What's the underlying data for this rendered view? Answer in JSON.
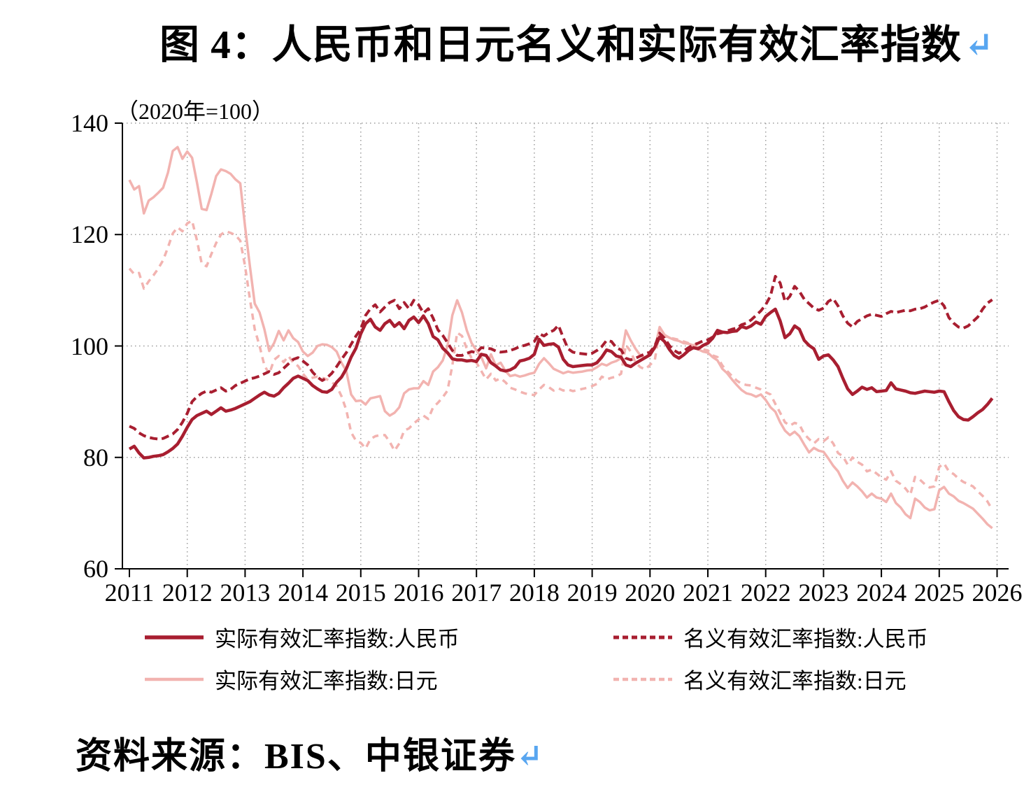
{
  "title": {
    "text": "图 4：人民币和日元名义和实际有效汇率指数",
    "return_mark": "↵"
  },
  "source": {
    "text": "资料来源：BIS、中银证券",
    "return_mark": "↵"
  },
  "colors": {
    "cny": "#a81e30",
    "jpy": "#f2b3b0",
    "gridline": "#9c9c9c",
    "axis": "#000000",
    "return_arrow": "#58a6f0"
  },
  "chart_data": {
    "type": "line",
    "title": "图 4：人民币和日元名义和实际有效汇率指数",
    "axis_note": "（2020年=100）",
    "ylim": [
      60,
      140
    ],
    "y_ticks": [
      140,
      120,
      100,
      80,
      60
    ],
    "x_ticks": [
      2011,
      2012,
      2013,
      2014,
      2015,
      2016,
      2017,
      2018,
      2019,
      2020,
      2021,
      2022,
      2023,
      2024,
      2025,
      2026
    ],
    "x_start_year": 2011,
    "frequency": "monthly",
    "grid": "dotted, horizontal at 80/100/120/140 and vertical at each year",
    "legend_position": "below chart, two columns",
    "series": [
      {
        "name": "实际有效汇率指数:日元",
        "currency": "JPY",
        "measure": "real",
        "style": "solid",
        "width": 3.5,
        "color_key": "jpy",
        "values": [
          129.8,
          128.1,
          128.7,
          123.8,
          126.1,
          126.7,
          127.5,
          128.4,
          131.1,
          135.0,
          135.7,
          133.6,
          134.9,
          133.8,
          129.4,
          124.6,
          124.4,
          127.3,
          130.5,
          131.7,
          131.4,
          130.9,
          129.9,
          129.2,
          121.4,
          114.3,
          107.6,
          106.0,
          103.0,
          99.1,
          100.5,
          102.7,
          101.0,
          102.8,
          101.4,
          100.7,
          99.0,
          98.2,
          98.8,
          100.0,
          100.3,
          100.2,
          99.8,
          99.0,
          97.0,
          95.5,
          91.3,
          90.1,
          90.2,
          89.5,
          90.6,
          90.8,
          91.0,
          88.3,
          87.5,
          88.0,
          89.0,
          91.5,
          92.2,
          92.4,
          92.4,
          93.7,
          93.0,
          95.4,
          96.2,
          97.4,
          100.0,
          105.5,
          108.2,
          106.0,
          102.8,
          100.5,
          99.2,
          98.0,
          96.0,
          98.5,
          96.5,
          97.0,
          95.5,
          94.6,
          94.8,
          94.5,
          94.7,
          95.0,
          95.2,
          96.8,
          97.8,
          96.9,
          95.9,
          95.5,
          95.1,
          95.4,
          95.2,
          95.3,
          95.4,
          95.6,
          95.7,
          96.2,
          96.8,
          96.5,
          97.0,
          97.3,
          97.8,
          102.8,
          101.0,
          99.5,
          98.3,
          97.9,
          98.7,
          99.5,
          103.4,
          102.0,
          101.5,
          101.1,
          100.9,
          100.5,
          100.4,
          100.1,
          99.4,
          99.0,
          98.8,
          98.0,
          97.4,
          95.9,
          95.1,
          94.0,
          93.0,
          92.1,
          91.5,
          91.3,
          90.9,
          91.3,
          90.3,
          89.0,
          88.2,
          86.3,
          84.8,
          84.0,
          84.6,
          83.8,
          82.3,
          80.9,
          81.7,
          81.2,
          81.0,
          79.8,
          78.5,
          77.5,
          75.8,
          74.5,
          75.5,
          74.8,
          73.9,
          72.8,
          73.5,
          72.8,
          72.6,
          72.0,
          73.5,
          71.8,
          71.0,
          69.8,
          69.1,
          72.6,
          72.0,
          71.0,
          70.5,
          70.7,
          74.1,
          74.7,
          73.5,
          73.0,
          72.2,
          71.8,
          71.3,
          70.8,
          69.9,
          69.0,
          68.0,
          67.3
        ]
      },
      {
        "name": "名义有效汇率指数:日元",
        "currency": "JPY",
        "measure": "nominal",
        "style": "dashed",
        "width": 3.5,
        "color_key": "jpy",
        "values": [
          113.9,
          112.9,
          113.1,
          110.3,
          111.6,
          112.7,
          113.9,
          115.4,
          117.7,
          120.2,
          121.3,
          120.6,
          122.0,
          122.5,
          119.0,
          114.8,
          114.3,
          116.5,
          118.5,
          120.0,
          120.6,
          120.3,
          119.9,
          118.9,
          114.3,
          108.4,
          103.0,
          100.0,
          96.5,
          95.0,
          97.5,
          98.2,
          97.1,
          98.2,
          97.0,
          96.4,
          95.0,
          94.0,
          94.3,
          94.5,
          94.3,
          94.0,
          93.5,
          92.8,
          91.0,
          88.5,
          84.5,
          83.0,
          82.6,
          81.6,
          83.3,
          83.8,
          84.0,
          84.0,
          82.8,
          81.2,
          82.5,
          84.8,
          85.2,
          86.1,
          86.8,
          87.5,
          86.9,
          89.0,
          89.8,
          90.8,
          92.0,
          96.5,
          102.4,
          101.8,
          99.5,
          97.8,
          97.0,
          95.5,
          94.0,
          95.0,
          93.8,
          94.2,
          93.5,
          92.5,
          92.2,
          91.8,
          91.5,
          91.3,
          91.2,
          92.2,
          93.0,
          92.6,
          92.0,
          92.4,
          92.0,
          92.2,
          91.9,
          92.1,
          92.3,
          92.5,
          92.8,
          93.2,
          94.5,
          94.0,
          94.3,
          94.5,
          95.0,
          100.2,
          99.0,
          97.0,
          96.2,
          95.8,
          96.6,
          97.5,
          102.8,
          101.8,
          101.5,
          101.3,
          101.1,
          100.8,
          100.5,
          100.3,
          99.8,
          99.4,
          99.2,
          98.3,
          98.0,
          96.5,
          95.5,
          94.6,
          93.8,
          93.2,
          93.0,
          92.9,
          92.5,
          92.2,
          91.7,
          91.3,
          89.6,
          88.0,
          86.3,
          85.7,
          86.2,
          85.9,
          84.2,
          83.3,
          82.5,
          83.3,
          82.9,
          83.6,
          82.5,
          80.8,
          80.2,
          78.7,
          80.0,
          79.2,
          78.7,
          77.5,
          77.8,
          77.1,
          76.4,
          76.0,
          77.5,
          75.8,
          75.2,
          74.4,
          73.3,
          76.5,
          76.0,
          75.2,
          74.6,
          74.8,
          78.3,
          78.9,
          77.5,
          77.0,
          76.2,
          75.6,
          75.2,
          74.8,
          73.9,
          73.1,
          72.1,
          70.6
        ]
      },
      {
        "name": "实际有效汇率指数:人民币",
        "currency": "CNY",
        "measure": "real",
        "style": "solid",
        "width": 4.5,
        "color_key": "cny",
        "values": [
          81.5,
          82.0,
          80.8,
          79.9,
          80.0,
          80.2,
          80.3,
          80.5,
          81.0,
          81.6,
          82.4,
          83.8,
          85.4,
          86.8,
          87.5,
          87.9,
          88.3,
          87.7,
          88.3,
          88.9,
          88.3,
          88.5,
          88.8,
          89.2,
          89.6,
          90.0,
          90.6,
          91.2,
          91.7,
          91.2,
          91.0,
          91.5,
          92.5,
          93.3,
          94.2,
          94.6,
          94.2,
          93.8,
          92.9,
          92.3,
          91.8,
          91.7,
          92.2,
          93.5,
          94.4,
          95.9,
          98.0,
          99.6,
          102.2,
          104.0,
          104.8,
          103.4,
          102.8,
          104.0,
          104.6,
          103.5,
          104.2,
          103.1,
          104.6,
          105.2,
          104.2,
          105.4,
          104.0,
          101.7,
          101.1,
          99.6,
          98.8,
          97.7,
          97.5,
          97.5,
          97.3,
          97.4,
          97.2,
          98.5,
          98.3,
          97.0,
          96.4,
          95.7,
          95.5,
          95.7,
          96.2,
          97.3,
          97.5,
          97.8,
          98.5,
          101.2,
          100.1,
          100.3,
          100.4,
          99.8,
          97.6,
          96.6,
          96.3,
          96.4,
          96.5,
          96.6,
          96.6,
          97.0,
          98.0,
          99.3,
          99.0,
          98.2,
          98.0,
          96.6,
          96.3,
          96.9,
          97.4,
          97.9,
          98.4,
          99.8,
          101.6,
          100.8,
          99.4,
          98.3,
          97.8,
          98.4,
          99.2,
          99.7,
          99.5,
          100.1,
          100.5,
          101.4,
          102.8,
          102.5,
          102.4,
          102.6,
          102.7,
          103.5,
          103.2,
          103.6,
          104.3,
          103.9,
          105.3,
          106.0,
          106.6,
          104.5,
          101.5,
          102.2,
          103.6,
          103.0,
          101.0,
          100.1,
          99.5,
          97.6,
          98.2,
          98.4,
          97.5,
          96.3,
          94.2,
          92.3,
          91.3,
          91.9,
          92.6,
          92.2,
          92.5,
          91.8,
          91.9,
          92.0,
          93.4,
          92.3,
          92.1,
          91.9,
          91.6,
          91.5,
          91.7,
          91.9,
          91.8,
          91.7,
          91.9,
          91.8,
          90.0,
          88.4,
          87.3,
          86.8,
          86.7,
          87.3,
          88.0,
          88.6,
          89.5,
          90.6
        ]
      },
      {
        "name": "名义有效汇率指数:人民币",
        "currency": "CNY",
        "measure": "nominal",
        "style": "dashed",
        "width": 4,
        "color_key": "cny",
        "values": [
          85.6,
          85.2,
          84.4,
          83.9,
          83.6,
          83.4,
          83.3,
          83.4,
          83.8,
          84.2,
          85.0,
          86.3,
          87.9,
          90.0,
          90.9,
          91.5,
          91.9,
          91.7,
          92.1,
          92.5,
          91.9,
          92.2,
          92.9,
          93.3,
          93.7,
          94.1,
          94.3,
          94.6,
          95.0,
          95.4,
          94.9,
          95.2,
          96.0,
          96.8,
          97.6,
          97.9,
          97.3,
          96.6,
          95.3,
          94.4,
          93.8,
          94.3,
          95.1,
          96.3,
          97.6,
          98.8,
          100.3,
          101.8,
          103.0,
          105.5,
          106.7,
          107.4,
          106.1,
          107.0,
          107.8,
          108.2,
          106.7,
          107.8,
          106.7,
          108.2,
          107.4,
          105.9,
          106.7,
          105.0,
          102.9,
          101.9,
          100.6,
          99.2,
          98.3,
          98.3,
          98.7,
          99.0,
          98.8,
          99.7,
          99.6,
          99.5,
          99.1,
          98.9,
          99.0,
          99.2,
          99.5,
          99.9,
          100.1,
          100.4,
          100.8,
          102.2,
          101.8,
          102.4,
          102.8,
          103.7,
          101.5,
          99.5,
          98.9,
          98.7,
          98.6,
          98.5,
          98.7,
          99.2,
          99.9,
          101.0,
          100.8,
          99.7,
          99.3,
          97.8,
          97.5,
          97.8,
          98.2,
          98.6,
          98.9,
          100.0,
          102.3,
          101.4,
          100.1,
          99.2,
          98.7,
          99.1,
          99.7,
          100.2,
          100.5,
          100.9,
          101.1,
          101.6,
          102.2,
          102.4,
          102.7,
          103.0,
          103.2,
          103.8,
          104.1,
          104.7,
          105.5,
          106.3,
          107.4,
          109.0,
          112.5,
          111.3,
          108.0,
          108.9,
          110.7,
          109.8,
          108.4,
          107.6,
          106.8,
          106.4,
          106.8,
          108.0,
          108.5,
          107.2,
          105.4,
          104.1,
          103.4,
          104.4,
          104.9,
          105.4,
          105.7,
          105.5,
          105.3,
          105.8,
          106.2,
          106.0,
          106.2,
          106.4,
          106.3,
          106.6,
          106.7,
          107.0,
          107.5,
          107.9,
          108.2,
          107.2,
          105.1,
          104.1,
          103.4,
          103.2,
          103.6,
          104.4,
          105.2,
          106.6,
          107.7,
          108.3
        ]
      }
    ],
    "legend": [
      {
        "series_index": 2,
        "row": 1,
        "col": 1
      },
      {
        "series_index": 3,
        "row": 1,
        "col": 2
      },
      {
        "series_index": 0,
        "row": 2,
        "col": 1
      },
      {
        "series_index": 1,
        "row": 2,
        "col": 2
      }
    ]
  }
}
